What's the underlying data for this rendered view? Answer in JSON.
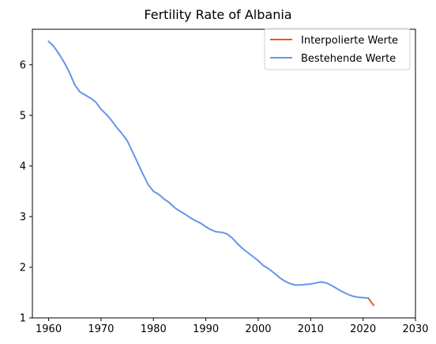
{
  "chart_data": {
    "type": "line",
    "title": "Fertility Rate of Albania",
    "xlabel": "",
    "ylabel": "",
    "xlim": [
      1956.9,
      2030
    ],
    "ylim": [
      1,
      6.7
    ],
    "xticks": [
      1960,
      1970,
      1980,
      1990,
      2000,
      2010,
      2020,
      2030
    ],
    "yticks": [
      1,
      2,
      3,
      4,
      5,
      6
    ],
    "legend_position": "top-right",
    "grid": false,
    "series": [
      {
        "name": "Interpolierte Werte",
        "color": "#f4511e",
        "x": [
          2021,
          2022
        ],
        "y": [
          1.39,
          1.25
        ]
      },
      {
        "name": "Bestehende Werte",
        "color": "#6495ed",
        "x": [
          1960,
          1961,
          1962,
          1963,
          1964,
          1965,
          1966,
          1967,
          1968,
          1969,
          1970,
          1971,
          1972,
          1973,
          1974,
          1975,
          1976,
          1977,
          1978,
          1979,
          1980,
          1981,
          1982,
          1983,
          1984,
          1985,
          1986,
          1987,
          1988,
          1989,
          1990,
          1991,
          1992,
          1993,
          1994,
          1995,
          1996,
          1997,
          1998,
          1999,
          2000,
          2001,
          2002,
          2003,
          2004,
          2005,
          2006,
          2007,
          2008,
          2009,
          2010,
          2011,
          2012,
          2013,
          2014,
          2015,
          2016,
          2017,
          2018,
          2019,
          2020,
          2021
        ],
        "y": [
          6.46,
          6.36,
          6.21,
          6.04,
          5.84,
          5.6,
          5.46,
          5.4,
          5.34,
          5.26,
          5.12,
          5.02,
          4.9,
          4.76,
          4.64,
          4.5,
          4.28,
          4.06,
          3.84,
          3.63,
          3.5,
          3.44,
          3.35,
          3.28,
          3.18,
          3.11,
          3.05,
          2.98,
          2.92,
          2.87,
          2.8,
          2.74,
          2.7,
          2.69,
          2.66,
          2.58,
          2.47,
          2.37,
          2.29,
          2.21,
          2.13,
          2.03,
          1.97,
          1.89,
          1.8,
          1.73,
          1.68,
          1.65,
          1.65,
          1.66,
          1.67,
          1.69,
          1.71,
          1.69,
          1.64,
          1.58,
          1.52,
          1.47,
          1.43,
          1.41,
          1.4,
          1.39
        ]
      }
    ]
  }
}
